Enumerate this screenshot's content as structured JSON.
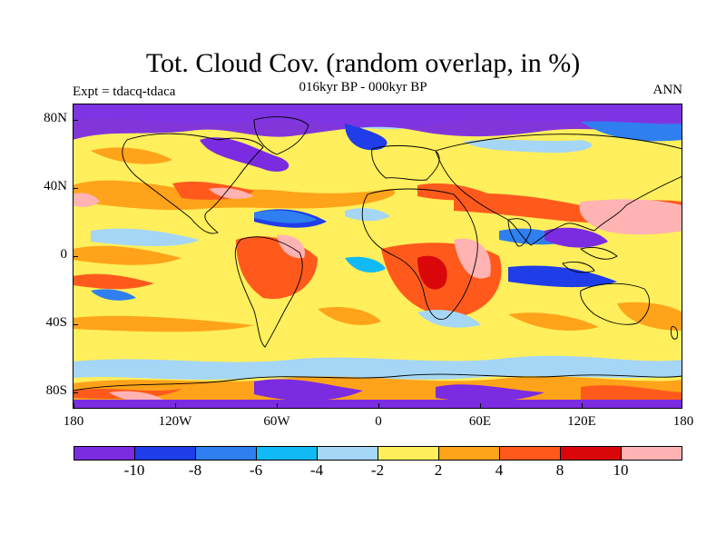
{
  "title": "Tot. Cloud Cov. (random overlap, in %)",
  "subtitle": "016kyr BP - 000kyr BP",
  "left_label": "Expt = tdacq-tdaca",
  "right_label": "ANN",
  "axes": {
    "lat_ticks": [
      "80N",
      "40N",
      "0",
      "40S",
      "80S"
    ],
    "lon_ticks": [
      "180",
      "120W",
      "60W",
      "0",
      "60E",
      "120E",
      "180"
    ]
  },
  "colorbar": {
    "colors": [
      "#7b2be0",
      "#1f3de8",
      "#2f7ff0",
      "#12baf5",
      "#a6d6f5",
      "#ffef5c",
      "#ffa31a",
      "#ff5a1c",
      "#d9070a",
      "#ffb3b3"
    ],
    "labels": [
      "-10",
      "-8",
      "-6",
      "-4",
      "-2",
      "2",
      "4",
      "8",
      "10"
    ]
  },
  "map_features": [
    "cloud-cover-anomaly-field",
    "continent-outlines"
  ]
}
